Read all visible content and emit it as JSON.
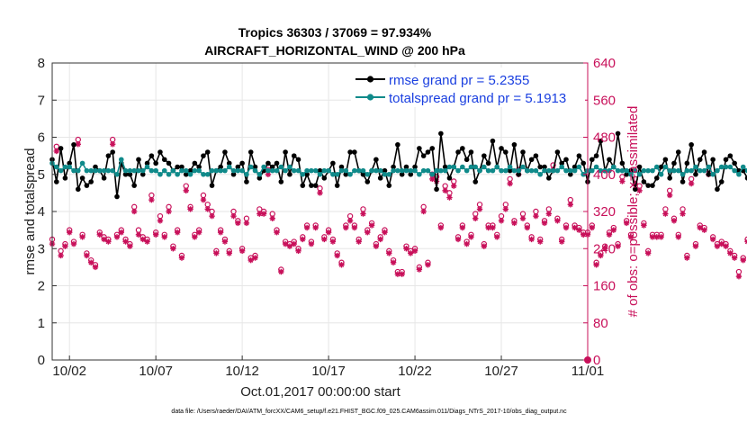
{
  "title_line1": "Tropics 36303 / 37069 = 97.934%",
  "title_line2": "AIRCRAFT_HORIZONTAL_WIND @ 200 hPa",
  "footnote": "data file: /Users/raeder/DAI/ATM_forcXX/CAM6_setup/f.e21.FHIST_BGC.f09_025.CAM6assim.011/Diags_NTrS_2017-10/obs_diag_output.nc",
  "colors": {
    "rmse": "#000000",
    "spread": "#0f8a8a",
    "obs": "#c8105a",
    "legend_text": "#1a3fe0"
  },
  "chart_data": {
    "type": "line",
    "xlabel": "Oct.01,2017 00:00:00 start",
    "ylabel_left": "rmse and totalspread",
    "ylabel_right": "# of obs: o=possible; ×=assimilated",
    "xlim": [
      0.5,
      31.5
    ],
    "ylim_left": [
      0,
      8
    ],
    "ylim_right": [
      0,
      640
    ],
    "xticks": [
      1.5,
      6.5,
      11.5,
      16.5,
      21.5,
      26.5,
      31.5
    ],
    "xtick_labels": [
      "10/02",
      "10/07",
      "10/12",
      "10/17",
      "10/22",
      "10/27",
      "11/01"
    ],
    "yticks_left": [
      0,
      1,
      2,
      3,
      4,
      5,
      6,
      7,
      8
    ],
    "yticks_right": [
      0,
      80,
      160,
      240,
      320,
      400,
      480,
      560,
      640
    ],
    "legend": [
      "rmse grand pr = 5.2355",
      "totalspread grand pr = 5.1913"
    ],
    "step_days": 0.25,
    "x_start": 0.5,
    "series": [
      {
        "name": "rmse",
        "axis": "left",
        "values": [
          5.4,
          4.8,
          5.7,
          4.9,
          5.3,
          5.8,
          4.6,
          4.9,
          4.7,
          4.8,
          5.2,
          5.1,
          4.9,
          5.5,
          5.6,
          4.4,
          5.3,
          5.0,
          5.0,
          4.7,
          5.4,
          5.0,
          5.3,
          5.5,
          5.3,
          5.6,
          5.4,
          5.3,
          5.1,
          5.2,
          5.2,
          5.0,
          5.1,
          5.3,
          5.2,
          5.5,
          5.6,
          4.7,
          5.1,
          5.2,
          5.6,
          5.3,
          5.0,
          5.2,
          5.3,
          4.8,
          5.6,
          5.2,
          4.9,
          5.1,
          5.3,
          5.2,
          5.3,
          4.8,
          5.6,
          5.0,
          5.5,
          5.4,
          4.7,
          5.0,
          4.7,
          4.7,
          5.1,
          4.9,
          5.1,
          5.3,
          4.7,
          5.2,
          5.0,
          5.6,
          5.6,
          5.1,
          5.0,
          4.8,
          5.1,
          5.4,
          4.9,
          5.1,
          4.7,
          5.2,
          5.8,
          5.0,
          5.2,
          5.0,
          5.2,
          5.7,
          5.5,
          5.6,
          5.7,
          4.6,
          6.1,
          5.2,
          4.9,
          5.2,
          5.6,
          5.7,
          5.4,
          5.6,
          4.8,
          5.1,
          5.5,
          5.3,
          5.9,
          5.2,
          5.7,
          5.6,
          5.1,
          5.8,
          5.0,
          5.6,
          5.1,
          5.4,
          5.5,
          5.2,
          5.2,
          4.9,
          5.1,
          5.6,
          5.3,
          5.4,
          5.0,
          5.2,
          5.5,
          5.3,
          4.8,
          5.4,
          5.5,
          5.9,
          5.1,
          5.4,
          5.2,
          6.1,
          5.3,
          5.0,
          5.1,
          4.6,
          5.2,
          4.8,
          4.7,
          4.7,
          4.9,
          5.2,
          5.4,
          4.9,
          5.3,
          5.6,
          4.8,
          5.3,
          5.8,
          5.0,
          5.4,
          5.6,
          5.0,
          5.4,
          4.6,
          4.8,
          5.4,
          5.5,
          5.3,
          5.1,
          5.1,
          4.9,
          5.6,
          4.7,
          5.0,
          5.4,
          5.0,
          5.0,
          5.3,
          5.0,
          5.1,
          5.0,
          5.3,
          5.5,
          4.8,
          5.2,
          5.6,
          5.6,
          5.5,
          5.3,
          4.7,
          5.7,
          5.7,
          5.9,
          5.4,
          5.3,
          5.4,
          5.7,
          5.3,
          4.9,
          5.8,
          5.1,
          5.6,
          5.7,
          5.0,
          5.1,
          5.3,
          4.6,
          6.0,
          4.5,
          4.7,
          4.7,
          4.7
        ]
      },
      {
        "name": "totalspread",
        "axis": "left",
        "values": [
          5.3,
          5.2,
          5.1,
          5.2,
          5.2,
          5.1,
          5.1,
          5.3,
          5.1,
          5.1,
          5.1,
          5.1,
          5.1,
          5.1,
          5.1,
          5.0,
          5.4,
          5.1,
          5.1,
          5.1,
          5.1,
          5.1,
          5.2,
          5.1,
          5.1,
          5.0,
          5.1,
          5.0,
          5.1,
          5.0,
          5.1,
          5.1,
          5.0,
          5.1,
          5.1,
          5.0,
          5.0,
          5.1,
          5.1,
          5.1,
          5.1,
          5.2,
          5.1,
          5.1,
          5.1,
          5.0,
          5.2,
          5.1,
          5.0,
          5.2,
          5.1,
          5.1,
          5.1,
          5.2,
          5.1,
          5.2,
          5.1,
          5.1,
          5.0,
          5.1,
          5.1,
          5.1,
          5.0,
          5.1,
          5.1,
          5.0,
          5.0,
          5.1,
          5.1,
          5.0,
          5.1,
          5.1,
          5.1,
          5.0,
          5.1,
          5.1,
          5.1,
          5.0,
          5.0,
          5.1,
          5.1,
          5.1,
          5.1,
          5.1,
          5.1,
          5.0,
          5.1,
          5.1,
          5.0,
          5.1,
          5.1,
          5.1,
          5.2,
          5.2,
          5.1,
          5.2,
          5.1,
          5.2,
          5.2,
          5.1,
          5.2,
          5.1,
          5.1,
          5.2,
          5.1,
          5.1,
          5.2,
          5.1,
          5.1,
          5.2,
          5.1,
          5.1,
          5.1,
          5.0,
          5.1,
          5.1,
          5.1,
          5.1,
          5.2,
          5.1,
          5.1,
          5.1,
          5.2,
          5.0,
          5.1,
          5.1,
          5.2,
          5.1,
          5.1,
          5.1,
          5.2,
          5.1,
          5.1,
          5.1,
          5.0,
          5.1,
          5.0,
          5.1,
          5.1,
          5.1,
          5.2,
          5.0,
          5.2,
          5.1,
          5.1,
          5.1,
          5.0,
          5.1,
          5.1,
          5.2,
          5.1,
          5.1,
          5.2,
          5.0,
          5.1,
          5.2,
          5.2,
          5.2,
          5.1,
          5.0,
          5.2,
          5.1,
          5.1,
          5.1,
          5.1,
          5.1,
          5.2,
          5.1,
          5.3,
          5.2,
          5.1,
          5.2,
          5.2,
          5.2,
          5.3,
          5.3,
          5.4,
          5.2,
          5.3,
          5.5,
          5.4,
          5.4,
          5.3,
          5.4,
          5.4,
          5.3,
          5.2,
          5.3,
          5.3,
          5.2,
          5.3,
          5.1,
          5.2,
          5.1,
          5.0,
          5.2,
          5.1,
          5.0,
          5.2,
          5.1,
          5.1
        ]
      },
      {
        "name": "obs_possible",
        "axis": "right",
        "values": [
          260,
          460,
          235,
          250,
          280,
          255,
          475,
          270,
          230,
          215,
          205,
          275,
          265,
          260,
          475,
          270,
          280,
          260,
          250,
          330,
          280,
          265,
          260,
          355,
          275,
          310,
          270,
          330,
          245,
          280,
          225,
          375,
          330,
          270,
          280,
          355,
          335,
          320,
          235,
          280,
          260,
          235,
          320,
          300,
          240,
          305,
          220,
          225,
          325,
          320,
          410,
          315,
          280,
          195,
          255,
          250,
          255,
          240,
          265,
          290,
          255,
          290,
          370,
          265,
          280,
          260,
          230,
          210,
          290,
          310,
          290,
          260,
          325,
          280,
          295,
          250,
          265,
          280,
          235,
          215,
          190,
          190,
          245,
          235,
          240,
          200,
          330,
          210,
          400,
          395,
          290,
          375,
          360,
          385,
          265,
          290,
          255,
          270,
          315,
          335,
          250,
          290,
          290,
          270,
          310,
          335,
          390,
          300,
          410,
          315,
          290,
          265,
          320,
          260,
          300,
          325,
          420,
          305,
          260,
          290,
          345,
          290,
          285,
          275,
          275,
          290,
          210,
          230,
          245,
          275,
          285,
          250,
          395,
          300,
          270,
          390,
          375,
          295,
          235,
          270,
          270,
          270,
          325,
          365,
          305,
          270,
          325,
          225,
          390,
          250,
          290,
          285,
          410,
          265,
          250,
          255,
          250,
          235,
          225,
          190,
          220,
          260,
          280,
          340,
          335,
          260,
          290,
          280,
          255,
          230,
          270,
          210,
          265,
          235,
          260,
          305,
          310,
          345,
          310,
          280,
          270,
          290,
          285,
          265,
          255,
          290,
          270,
          290,
          290,
          280,
          230,
          190,
          245,
          225,
          215,
          225,
          265,
          320,
          245,
          275,
          270,
          270,
          325,
          250,
          310,
          395,
          290,
          260,
          265,
          265,
          260,
          250
        ]
      },
      {
        "name": "obs_assimilated",
        "axis": "right",
        "values": [
          250,
          450,
          225,
          245,
          275,
          250,
          465,
          265,
          225,
          210,
          200,
          270,
          260,
          255,
          465,
          265,
          275,
          255,
          245,
          320,
          270,
          260,
          255,
          345,
          270,
          300,
          265,
          320,
          240,
          275,
          220,
          365,
          325,
          265,
          275,
          345,
          325,
          310,
          230,
          275,
          255,
          230,
          310,
          295,
          235,
          295,
          215,
          220,
          315,
          315,
          400,
          305,
          275,
          190,
          250,
          245,
          250,
          235,
          260,
          285,
          250,
          285,
          360,
          260,
          275,
          255,
          225,
          205,
          285,
          300,
          285,
          255,
          315,
          275,
          290,
          245,
          260,
          275,
          230,
          210,
          185,
          185,
          240,
          230,
          235,
          195,
          320,
          205,
          390,
          385,
          285,
          365,
          350,
          375,
          260,
          285,
          250,
          265,
          305,
          325,
          245,
          285,
          285,
          265,
          300,
          325,
          380,
          295,
          400,
          305,
          285,
          260,
          310,
          255,
          295,
          315,
          410,
          300,
          255,
          285,
          335,
          285,
          280,
          270,
          270,
          285,
          205,
          225,
          240,
          270,
          280,
          245,
          385,
          295,
          265,
          380,
          365,
          290,
          230,
          265,
          265,
          265,
          315,
          355,
          300,
          265,
          315,
          220,
          380,
          245,
          285,
          280,
          400,
          260,
          245,
          250,
          245,
          230,
          220,
          180,
          215,
          255,
          275,
          330,
          325,
          255,
          285,
          275,
          250,
          225,
          265,
          205,
          260,
          230,
          255,
          300,
          305,
          335,
          305,
          275,
          265,
          285,
          280,
          260,
          250,
          285,
          265,
          285,
          285,
          275,
          225,
          185,
          240,
          220,
          210,
          220,
          260,
          310,
          240,
          270,
          265,
          265,
          315,
          245,
          300,
          385,
          285,
          255,
          260,
          260,
          255,
          245
        ]
      }
    ]
  }
}
